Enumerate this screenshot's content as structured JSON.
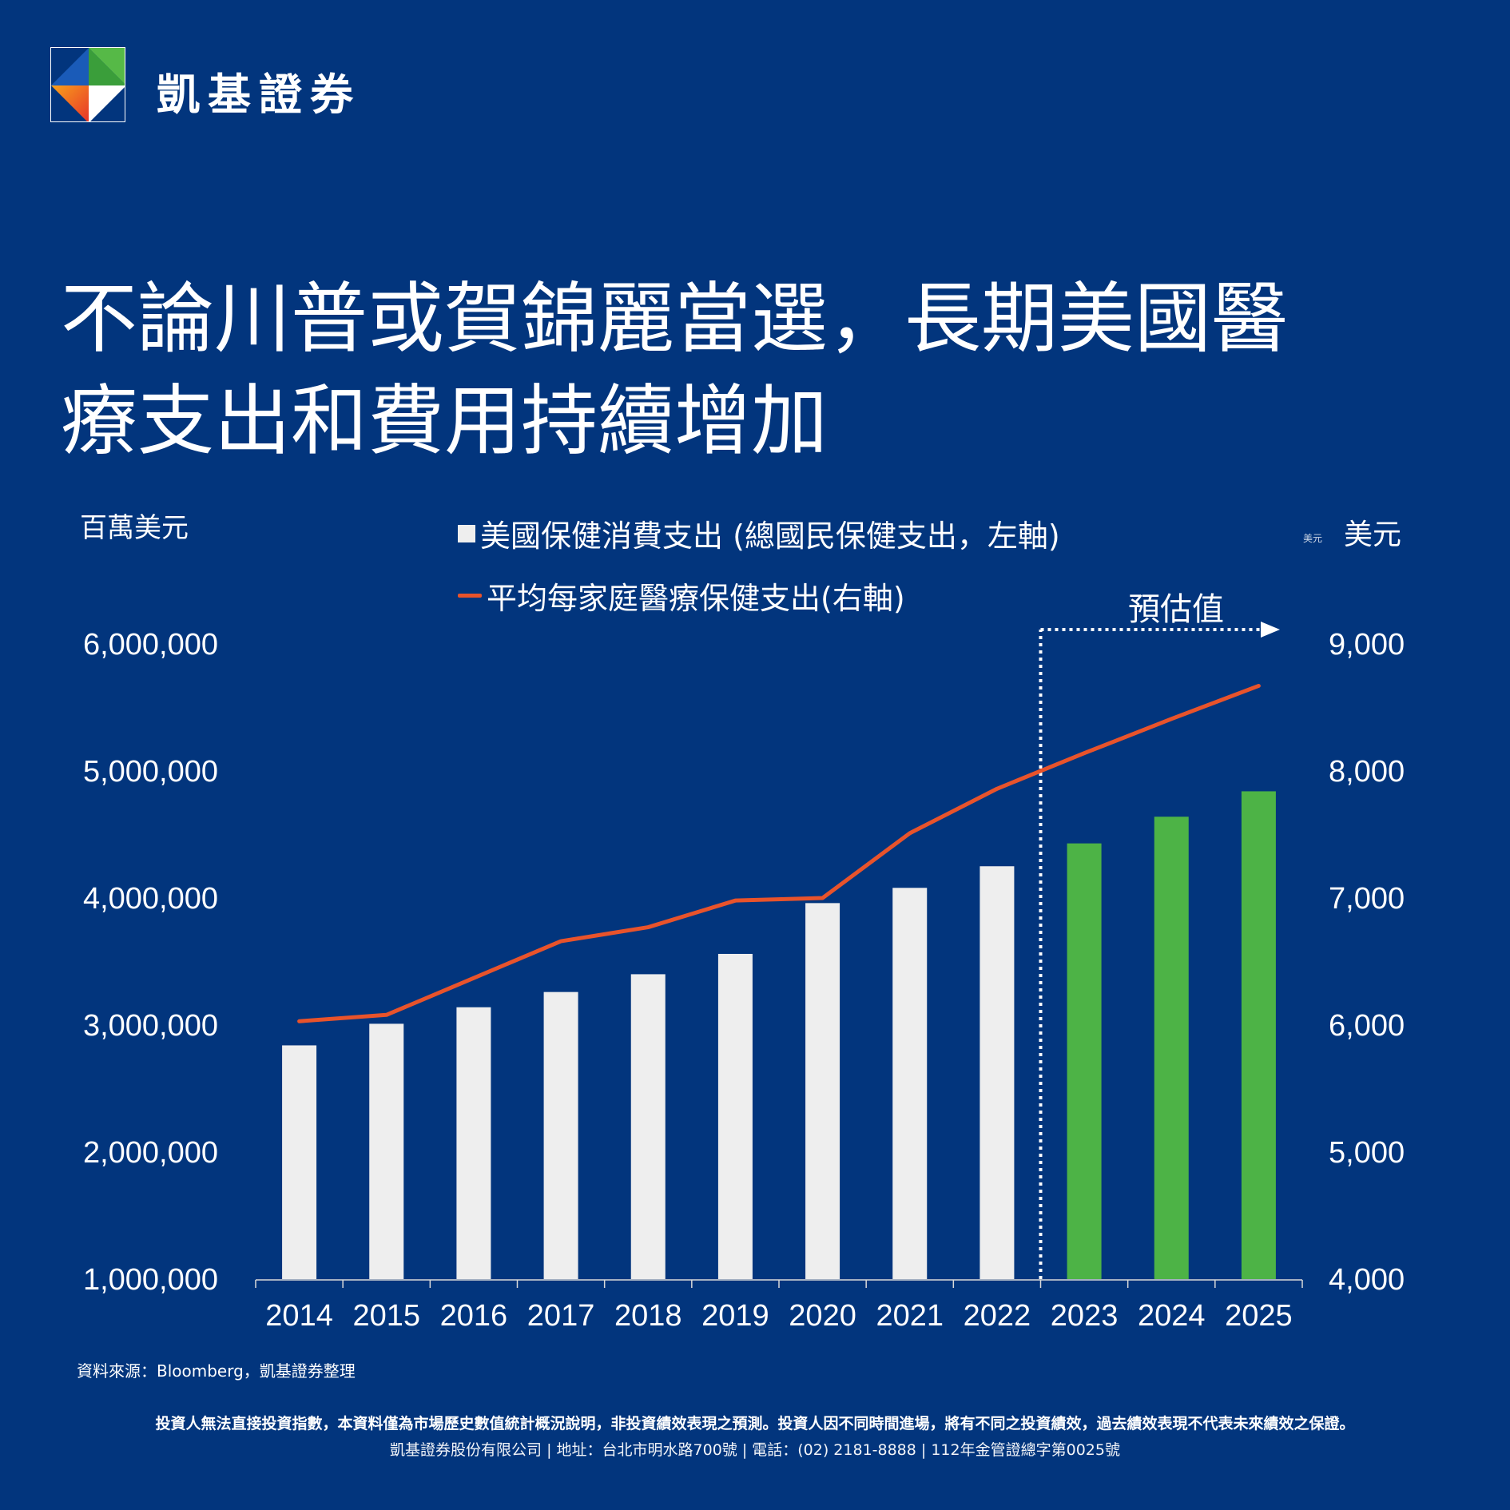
{
  "brand": {
    "name": "凱基證券"
  },
  "title": {
    "line1": "不論川普或賀錦麗當選，長期美國醫",
    "line2": "療支出和費用持續增加"
  },
  "units": {
    "left": "百萬美元",
    "right": "美元",
    "right_small": "美元"
  },
  "legend": {
    "bars": "美國保健消費支出 (總國民保健支出，左軸)",
    "line": "平均每家庭醫療保健支出(右軸)"
  },
  "forecast_label": "預估值",
  "footer": {
    "source": "資料來源：Bloomberg，凱基證券整理",
    "disclaimer": "投資人無法直接投資指數，本資料僅為市場歷史數值統計概況說明，非投資績效表現之預測。投資人因不同時間進場，將有不同之投資績效，過去績效表現不代表未來績效之保證。",
    "address": "凱基證券股份有限公司 | 地址：台北市明水路700號 | 電話：(02) 2181-8888 | 112年金管證總字第0025號"
  },
  "colors": {
    "background": "#02357d",
    "bar_actual": "#eeeeee",
    "bar_forecast": "#4db346",
    "line": "#e8532b",
    "text": "#ffffff"
  },
  "chart_data": {
    "type": "bar",
    "categories": [
      "2014",
      "2015",
      "2016",
      "2017",
      "2018",
      "2019",
      "2020",
      "2021",
      "2022",
      "2023",
      "2024",
      "2025"
    ],
    "forecast_from": "2023",
    "series": [
      {
        "name": "美國保健消費支出 (總國民保健支出，左軸)",
        "type": "bar",
        "axis": "left",
        "values": [
          2840000,
          3010000,
          3140000,
          3260000,
          3400000,
          3560000,
          3960000,
          4080000,
          4250000,
          4430000,
          4640000,
          4840000
        ]
      },
      {
        "name": "平均每家庭醫療保健支出(右軸)",
        "type": "line",
        "axis": "right",
        "values": [
          6030,
          6080,
          6370,
          6660,
          6770,
          6980,
          7000,
          7510,
          7860,
          8140,
          8410,
          8670
        ]
      }
    ],
    "y_left": {
      "label": "百萬美元",
      "ylim": [
        1000000,
        6000000
      ],
      "ticks": [
        "1,000,000",
        "2,000,000",
        "3,000,000",
        "4,000,000",
        "5,000,000",
        "6,000,000"
      ]
    },
    "y_right": {
      "label": "美元",
      "ylim": [
        4000,
        9000
      ],
      "ticks": [
        "4,000",
        "5,000",
        "6,000",
        "7,000",
        "8,000",
        "9,000"
      ]
    },
    "grid": false,
    "legend_position": "top"
  }
}
